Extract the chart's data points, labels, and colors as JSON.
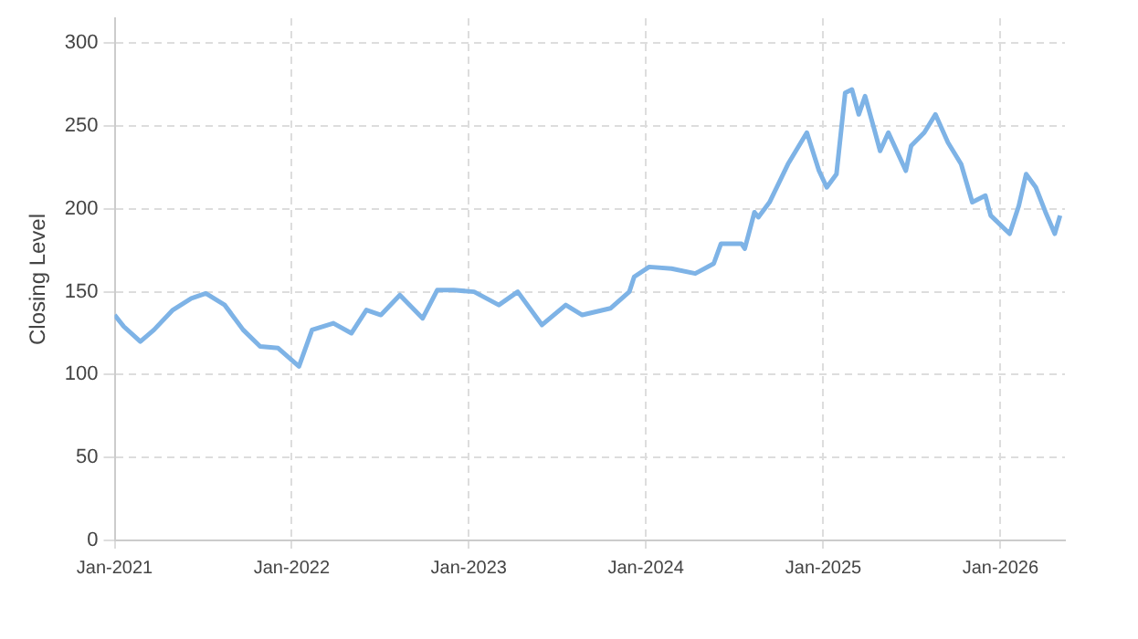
{
  "chart_data": {
    "type": "line",
    "ylabel": "Closing Level",
    "x": [
      "2021-01-01",
      "2021-01-20",
      "2021-02-23",
      "2021-03-23",
      "2021-05-01",
      "2021-06-08",
      "2021-07-08",
      "2021-08-16",
      "2021-09-23",
      "2021-10-28",
      "2021-12-04",
      "2022-01-16",
      "2022-02-12",
      "2022-03-28",
      "2022-05-04",
      "2022-06-04",
      "2022-07-04",
      "2022-08-12",
      "2022-09-28",
      "2022-10-28",
      "2022-12-01",
      "2023-01-12",
      "2023-03-04",
      "2023-04-12",
      "2023-06-01",
      "2023-07-20",
      "2023-08-23",
      "2023-10-20",
      "2023-11-28",
      "2023-12-08",
      "2024-01-08",
      "2024-02-23",
      "2024-04-12",
      "2024-05-20",
      "2024-06-04",
      "2024-07-16",
      "2024-07-23",
      "2024-08-12",
      "2024-08-20",
      "2024-09-12",
      "2024-10-20",
      "2024-11-28",
      "2024-12-23",
      "2025-01-08",
      "2025-01-28",
      "2025-02-15",
      "2025-03-01",
      "2025-03-15",
      "2025-03-28",
      "2025-04-15",
      "2025-04-28",
      "2025-05-15",
      "2025-06-20",
      "2025-07-01",
      "2025-07-28",
      "2025-08-20",
      "2025-09-15",
      "2025-10-12",
      "2025-11-04",
      "2025-12-01",
      "2025-12-12",
      "2026-01-20",
      "2026-02-08",
      "2026-02-23",
      "2026-03-15",
      "2026-04-04",
      "2026-04-23",
      "2026-05-04"
    ],
    "series": [
      {
        "color": "#7eb3e6",
        "values": [
          136,
          129,
          120,
          127,
          139,
          146,
          149,
          142,
          127,
          117,
          116,
          105,
          127,
          131,
          125,
          139,
          136,
          148,
          134,
          151,
          151,
          150,
          142,
          150,
          130,
          142,
          136,
          140,
          150,
          159,
          165,
          164,
          161,
          167,
          179,
          179,
          176,
          198,
          195,
          204,
          227,
          246,
          223,
          213,
          221,
          270,
          272,
          257,
          268,
          249,
          235,
          246,
          223,
          238,
          246,
          257,
          240,
          227,
          204,
          208,
          196,
          185,
          202,
          221,
          213,
          198,
          185,
          196
        ]
      }
    ],
    "xlim": [
      "2021-01-01",
      "2026-05-14"
    ],
    "xticks": [
      {
        "value": "2021-01-01",
        "label": "Jan-2021"
      },
      {
        "value": "2022-01-01",
        "label": "Jan-2022"
      },
      {
        "value": "2023-01-01",
        "label": "Jan-2023"
      },
      {
        "value": "2024-01-01",
        "label": "Jan-2024"
      },
      {
        "value": "2025-01-01",
        "label": "Jan-2025"
      },
      {
        "value": "2026-01-01",
        "label": "Jan-2026"
      }
    ],
    "ylim": [
      0,
      315
    ],
    "yticks": [
      0,
      50,
      100,
      150,
      200,
      250,
      300
    ],
    "grid": true,
    "legend": false,
    "marker": "none",
    "line_style": "solid"
  }
}
